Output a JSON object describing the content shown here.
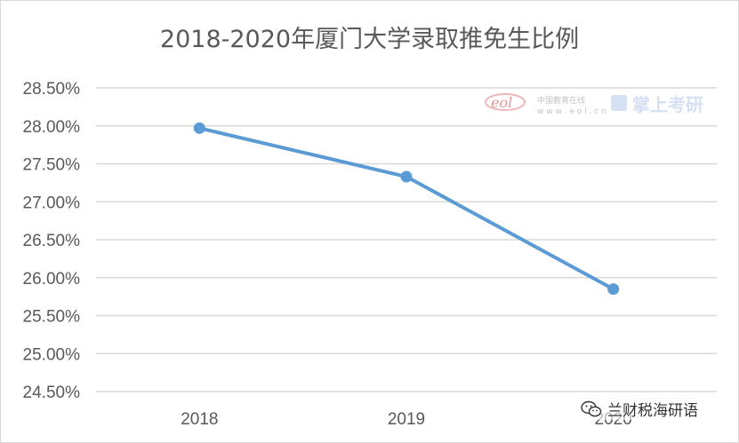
{
  "chart_data": {
    "type": "line",
    "title": "2018-2020年厦门大学录取推免生比例",
    "categories": [
      "2018",
      "2019",
      "2020"
    ],
    "series": [
      {
        "values": [
          27.97,
          27.33,
          25.85
        ]
      }
    ],
    "yticks": [
      "24.50%",
      "25.00%",
      "25.50%",
      "26.00%",
      "26.50%",
      "27.00%",
      "27.50%",
      "28.00%",
      "28.50%"
    ],
    "ylim": [
      24.5,
      28.5
    ],
    "grid": true,
    "legend": "none",
    "colors": {
      "line": "#5b9bd5",
      "grid": "#d9d9d9",
      "text": "#595959"
    }
  },
  "watermark": {
    "eol_text": "eol",
    "cn_site": "中国教育在线",
    "url": "w w w . e o l . c n",
    "brand": "掌上考研"
  },
  "source_tag": {
    "icon": "wechat-icon",
    "label": "兰财税海研语"
  }
}
